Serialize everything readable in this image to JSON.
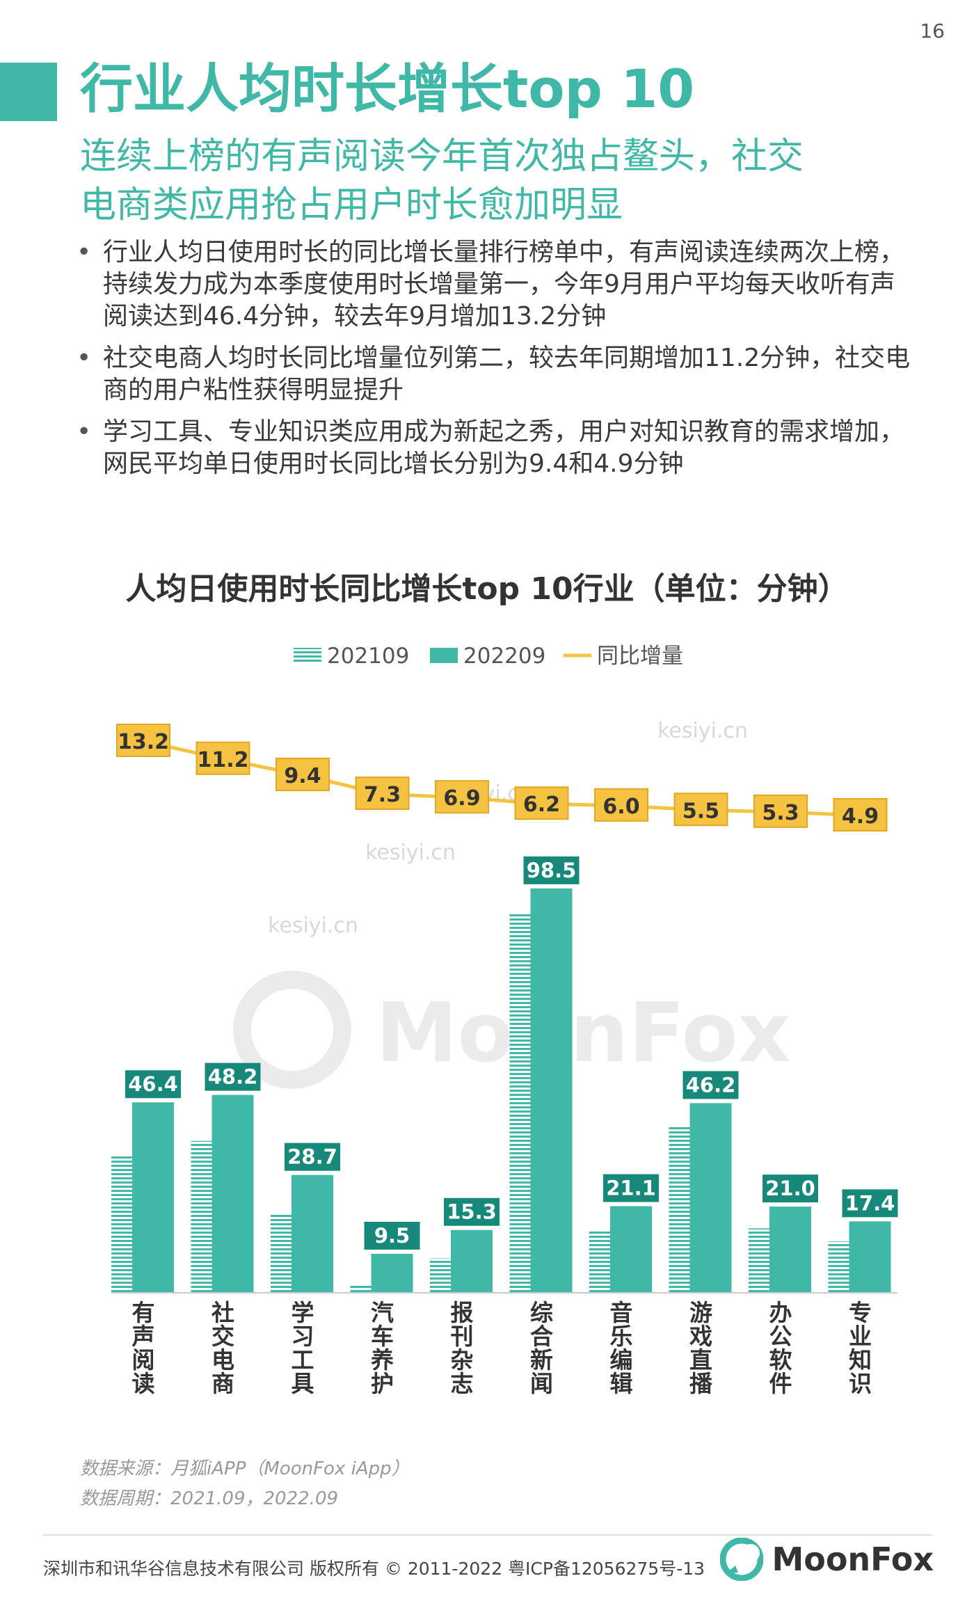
{
  "page_number": "16",
  "title": "行业人均时长增长top 10",
  "subtitle_line1": "连续上榜的有声阅读今年首次独占鳌头，社交",
  "subtitle_line2": "电商类应用抢占用户时长愈加明显",
  "bullets": [
    "行业人均日使用时长的同比增长量排行榜单中，有声阅读连续两次上榜，持续发力成为本季度使用时长增量第一，今年9月用户平均每天收听有声阅读达到46.4分钟，较去年9月增加13.2分钟",
    "社交电商人均时长同比增量位列第二，较去年同期增加11.2分钟，社交电商的用户粘性获得明显提升",
    "学习工具、专业知识类应用成为新起之秀，用户对知识教育的需求增加，网民平均单日使用时长同比增长分别为9.4和4.9分钟"
  ],
  "chart_data": {
    "type": "bar",
    "title": "人均日使用时长同比增长top 10行业（单位：分钟）",
    "categories": [
      "有声阅读",
      "社交电商",
      "学习工具",
      "汽车养护",
      "报刊杂志",
      "综合新闻",
      "音乐编辑",
      "游戏直播",
      "办公软件",
      "专业知识"
    ],
    "series": [
      {
        "name": "202109",
        "kind": "bar",
        "style": "hatched",
        "color": "#3fb8a8",
        "values": [
          33.2,
          37.0,
          19.3,
          2.2,
          8.4,
          92.3,
          15.1,
          40.7,
          15.7,
          12.5
        ]
      },
      {
        "name": "202209",
        "kind": "bar",
        "style": "solid",
        "color": "#3fb8a8",
        "values": [
          46.4,
          48.2,
          28.7,
          9.5,
          15.3,
          98.5,
          21.1,
          46.2,
          21.0,
          17.4
        ]
      },
      {
        "name": "同比增量",
        "kind": "line",
        "color": "#f5c242",
        "values": [
          13.2,
          11.2,
          9.4,
          7.3,
          6.9,
          6.2,
          6.0,
          5.5,
          5.3,
          4.9
        ]
      }
    ],
    "bar_data_labels": [
      "46.4",
      "48.2",
      "28.7",
      "9.5",
      "15.3",
      "98.5",
      "21.1",
      "46.2",
      "21.0",
      "17.4"
    ],
    "line_data_labels": [
      "13.2",
      "11.2",
      "9.4",
      "7.3",
      "6.9",
      "6.2",
      "6.0",
      "5.5",
      "5.3",
      "4.9"
    ],
    "legend_position": "top-center",
    "grid": false
  },
  "watermark_text": "kesiyi.cn",
  "watermark_brand": "MoonFox",
  "source_line1": "数据来源：月狐iAPP（MoonFox iApp）",
  "source_line2": "数据周期：2021.09，2022.09",
  "footer": "深圳市和讯华谷信息技术有限公司 版权所有 © 2011-2022 粤ICP备12056275号-13",
  "logo_text": "MoonFox",
  "colors": {
    "teal": "#3fb8a8",
    "dark_teal_label": "#17897a",
    "yellow": "#f5c242",
    "gray_text": "#333333"
  }
}
